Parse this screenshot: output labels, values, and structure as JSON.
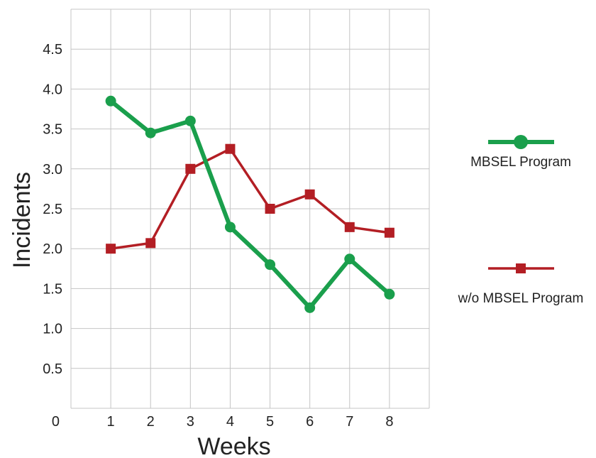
{
  "chart_data": {
    "type": "line",
    "xlabel": "Weeks",
    "ylabel": "Incidents",
    "x": [
      1,
      2,
      3,
      4,
      5,
      6,
      7,
      8
    ],
    "xlim": [
      0,
      9
    ],
    "ylim": [
      0,
      5
    ],
    "yticks": [
      "0",
      "0.5",
      "1.0",
      "1.5",
      "2.0",
      "2.5",
      "3.0",
      "3.5",
      "4.0",
      "4.5"
    ],
    "xticks": [
      "1",
      "2",
      "3",
      "4",
      "5",
      "6",
      "7",
      "8"
    ],
    "grid": true,
    "legend_position": "right",
    "series": [
      {
        "name": "MBSEL Program",
        "color": "#1a9f4c",
        "marker": "circle",
        "values": [
          3.85,
          3.45,
          3.6,
          2.27,
          1.8,
          1.26,
          1.87,
          1.43
        ]
      },
      {
        "name": "w/o MBSEL Program",
        "color": "#b31e24",
        "marker": "square",
        "values": [
          2.0,
          2.07,
          3.0,
          3.25,
          2.5,
          2.68,
          2.27,
          2.2
        ]
      }
    ]
  }
}
